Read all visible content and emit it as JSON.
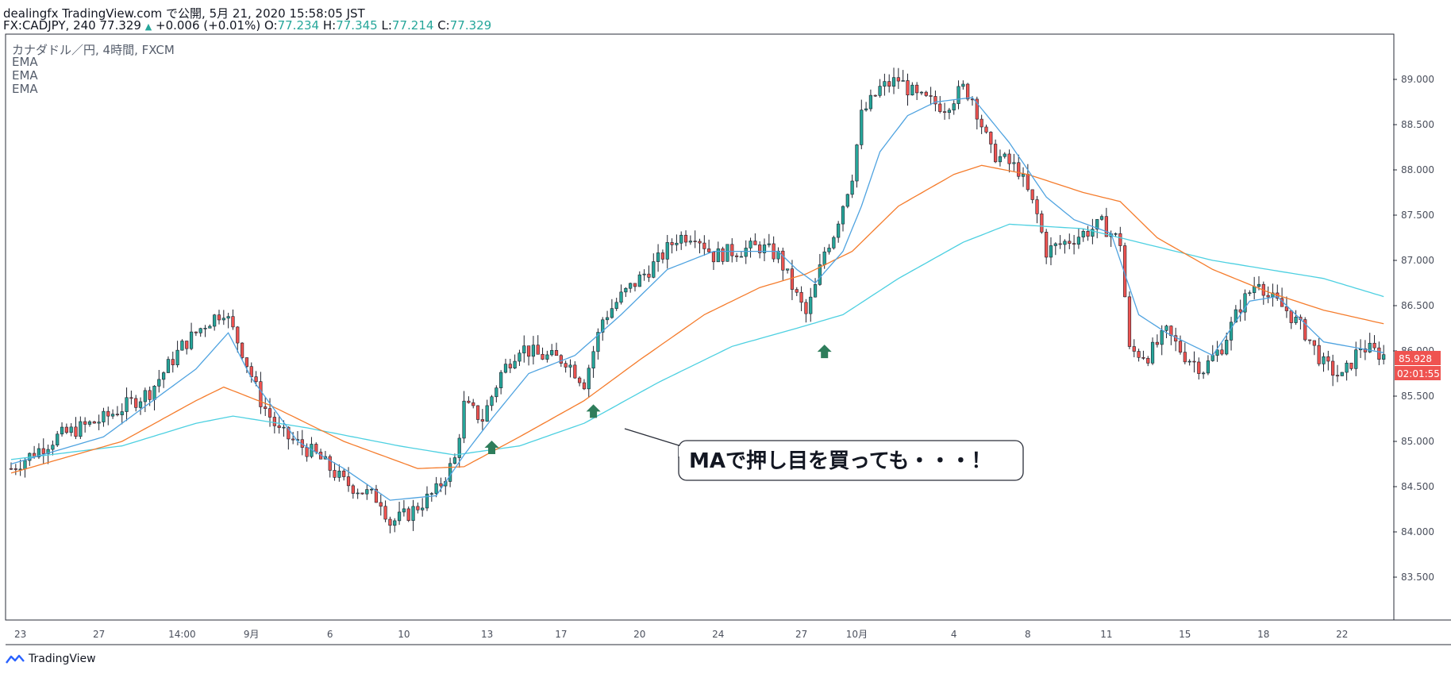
{
  "header": {
    "published": "dealingfx TradingView.com で公開, 5月 21, 2020 15:58:05 JST",
    "symbol_line": "FX:CADJPY, 240 77.329",
    "up_arrow": "▲",
    "change": "+0.006 (+0.01%)",
    "o_label": "O:",
    "o_value": "77.234",
    "h_label": "H:",
    "h_value": "77.345",
    "l_label": "L:",
    "l_value": "77.214",
    "c_label": "C:",
    "c_value": "77.329"
  },
  "legend": {
    "title": "カナダドル／円, 4時間, FXCM",
    "ind1": "EMA",
    "ind2": "EMA",
    "ind3": "EMA"
  },
  "annotation": {
    "callout": "MAで押し目を買っても・・・！"
  },
  "price_tags": {
    "last_price": "85.928",
    "countdown": "02:01:55"
  },
  "footer": {
    "brand": "TradingView"
  },
  "colors": {
    "up": "#26a69a",
    "down": "#ef5350",
    "ema_fast": "#4fa3e0",
    "ema_mid": "#f57c2c",
    "ema_slow": "#4dd0e1",
    "arrow": "#2e7d5b",
    "tag": "#ef5350"
  },
  "chart_data": {
    "type": "candlestick",
    "yaxis": {
      "ticks": [
        "89.000",
        "88.500",
        "88.000",
        "87.500",
        "87.000",
        "86.500",
        "86.000",
        "85.500",
        "85.000",
        "84.500",
        "84.000",
        "83.500"
      ],
      "ylim": [
        82.85,
        89.55
      ]
    },
    "xaxis": {
      "ticks": [
        "23",
        "27",
        "14:00",
        "9月",
        "6",
        "10",
        "13",
        "17",
        "20",
        "24",
        "27",
        "10月",
        "4",
        "8",
        "11",
        "15",
        "18",
        "22"
      ]
    },
    "close_waypoints": [
      [
        0,
        84.7
      ],
      [
        10,
        85.05
      ],
      [
        20,
        85.25
      ],
      [
        30,
        85.55
      ],
      [
        37,
        86.05
      ],
      [
        42,
        86.3
      ],
      [
        46,
        86.45
      ],
      [
        50,
        86.0
      ],
      [
        54,
        85.45
      ],
      [
        58,
        85.1
      ],
      [
        66,
        84.85
      ],
      [
        72,
        84.55
      ],
      [
        80,
        84.35
      ],
      [
        82,
        84.1
      ],
      [
        86,
        84.2
      ],
      [
        92,
        84.45
      ],
      [
        96,
        84.8
      ],
      [
        98,
        85.4
      ],
      [
        102,
        85.25
      ],
      [
        106,
        85.75
      ],
      [
        110,
        86.05
      ],
      [
        114,
        85.95
      ],
      [
        120,
        85.9
      ],
      [
        124,
        85.65
      ],
      [
        128,
        86.35
      ],
      [
        132,
        86.6
      ],
      [
        136,
        86.8
      ],
      [
        140,
        87.0
      ],
      [
        144,
        87.25
      ],
      [
        148,
        87.3
      ],
      [
        152,
        87.05
      ],
      [
        156,
        87.1
      ],
      [
        162,
        87.15
      ],
      [
        166,
        87.05
      ],
      [
        170,
        86.6
      ],
      [
        172,
        86.4
      ],
      [
        174,
        86.7
      ],
      [
        176,
        87.1
      ],
      [
        178,
        87.3
      ],
      [
        182,
        87.95
      ],
      [
        184,
        88.6
      ],
      [
        188,
        88.9
      ],
      [
        192,
        89.0
      ],
      [
        196,
        88.8
      ],
      [
        202,
        88.7
      ],
      [
        206,
        88.9
      ],
      [
        208,
        88.8
      ],
      [
        210,
        88.5
      ],
      [
        212,
        88.2
      ],
      [
        218,
        88.0
      ],
      [
        222,
        87.5
      ],
      [
        224,
        87.1
      ],
      [
        230,
        87.25
      ],
      [
        236,
        87.4
      ],
      [
        240,
        87.2
      ],
      [
        242,
        86.0
      ],
      [
        246,
        85.95
      ],
      [
        250,
        86.2
      ],
      [
        254,
        85.95
      ],
      [
        258,
        85.8
      ],
      [
        262,
        86.05
      ],
      [
        266,
        86.5
      ],
      [
        270,
        86.8
      ],
      [
        272,
        86.6
      ],
      [
        276,
        86.45
      ],
      [
        280,
        86.2
      ],
      [
        284,
        85.85
      ],
      [
        288,
        85.7
      ],
      [
        292,
        86.05
      ],
      [
        297,
        85.95
      ]
    ],
    "ema_fast_waypoints": [
      [
        0,
        84.75
      ],
      [
        20,
        85.05
      ],
      [
        40,
        85.8
      ],
      [
        47,
        86.2
      ],
      [
        52,
        85.7
      ],
      [
        62,
        85.0
      ],
      [
        72,
        84.7
      ],
      [
        82,
        84.35
      ],
      [
        92,
        84.4
      ],
      [
        98,
        84.85
      ],
      [
        104,
        85.25
      ],
      [
        112,
        85.75
      ],
      [
        122,
        85.95
      ],
      [
        132,
        86.4
      ],
      [
        142,
        86.9
      ],
      [
        152,
        87.1
      ],
      [
        166,
        87.1
      ],
      [
        170,
        86.9
      ],
      [
        174,
        86.75
      ],
      [
        180,
        87.1
      ],
      [
        184,
        87.6
      ],
      [
        188,
        88.2
      ],
      [
        194,
        88.6
      ],
      [
        200,
        88.75
      ],
      [
        208,
        88.8
      ],
      [
        216,
        88.3
      ],
      [
        224,
        87.7
      ],
      [
        230,
        87.45
      ],
      [
        238,
        87.3
      ],
      [
        244,
        86.4
      ],
      [
        250,
        86.2
      ],
      [
        260,
        85.95
      ],
      [
        268,
        86.55
      ],
      [
        274,
        86.6
      ],
      [
        284,
        86.1
      ],
      [
        297,
        85.98
      ]
    ],
    "ema_mid_waypoints": [
      [
        0,
        84.65
      ],
      [
        24,
        85.0
      ],
      [
        40,
        85.45
      ],
      [
        46,
        85.6
      ],
      [
        56,
        85.4
      ],
      [
        72,
        85.0
      ],
      [
        88,
        84.7
      ],
      [
        98,
        84.72
      ],
      [
        110,
        85.05
      ],
      [
        124,
        85.45
      ],
      [
        136,
        85.9
      ],
      [
        150,
        86.4
      ],
      [
        162,
        86.7
      ],
      [
        172,
        86.85
      ],
      [
        182,
        87.1
      ],
      [
        192,
        87.6
      ],
      [
        204,
        87.95
      ],
      [
        210,
        88.05
      ],
      [
        220,
        87.95
      ],
      [
        232,
        87.75
      ],
      [
        240,
        87.65
      ],
      [
        248,
        87.25
      ],
      [
        260,
        86.9
      ],
      [
        272,
        86.65
      ],
      [
        284,
        86.45
      ],
      [
        297,
        86.3
      ]
    ],
    "ema_slow_waypoints": [
      [
        0,
        84.8
      ],
      [
        24,
        84.95
      ],
      [
        40,
        85.2
      ],
      [
        48,
        85.28
      ],
      [
        64,
        85.15
      ],
      [
        84,
        84.95
      ],
      [
        96,
        84.85
      ],
      [
        110,
        84.95
      ],
      [
        124,
        85.2
      ],
      [
        140,
        85.65
      ],
      [
        156,
        86.05
      ],
      [
        170,
        86.25
      ],
      [
        180,
        86.4
      ],
      [
        192,
        86.8
      ],
      [
        206,
        87.2
      ],
      [
        216,
        87.4
      ],
      [
        232,
        87.35
      ],
      [
        244,
        87.2
      ],
      [
        260,
        87.0
      ],
      [
        272,
        86.9
      ],
      [
        284,
        86.8
      ],
      [
        297,
        86.6
      ]
    ],
    "buy_arrows": [
      [
        104,
        84.93
      ],
      [
        126,
        85.33
      ],
      [
        176,
        85.99
      ]
    ]
  }
}
